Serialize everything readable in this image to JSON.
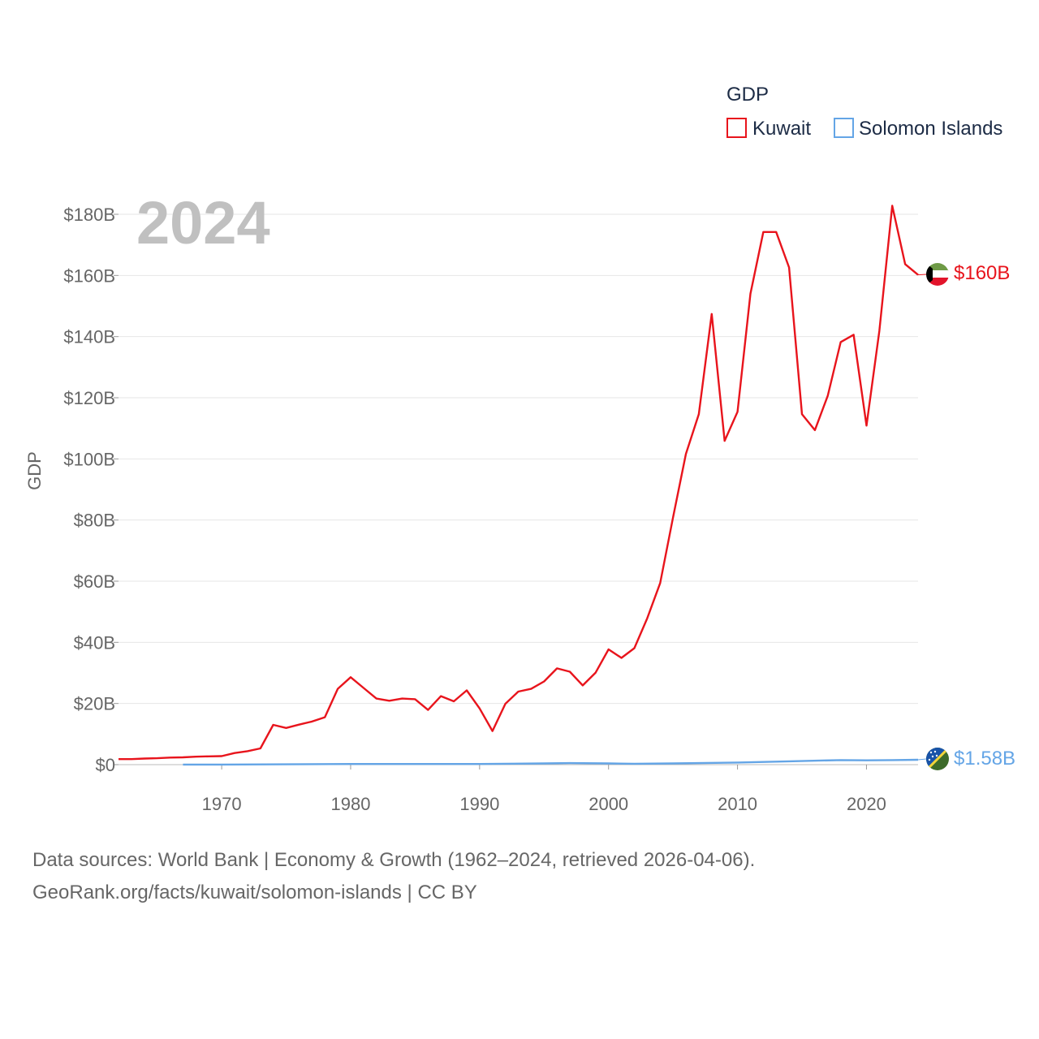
{
  "legend": {
    "title": "GDP",
    "items": [
      {
        "label": "Kuwait",
        "color": "#e8141c"
      },
      {
        "label": "Solomon Islands",
        "color": "#64a5e6"
      }
    ]
  },
  "year_label": "2024",
  "chart_data": {
    "type": "line",
    "title": "GDP",
    "xlabel": "",
    "ylabel": "GDP",
    "xlim": [
      1962,
      2024
    ],
    "ylim": [
      0,
      180
    ],
    "unit": "billions USD",
    "x_ticks": [
      1970,
      1980,
      1990,
      2000,
      2010,
      2020
    ],
    "y_ticks": [
      0,
      20,
      40,
      60,
      80,
      100,
      120,
      140,
      160,
      180
    ],
    "y_tick_labels": [
      "$0",
      "$20B",
      "$40B",
      "$60B",
      "$80B",
      "$100B",
      "$120B",
      "$140B",
      "$160B",
      "$180B"
    ],
    "grid": true,
    "series": [
      {
        "name": "Kuwait",
        "color": "#e8141c",
        "end_label": "$160B",
        "x": [
          1962,
          1963,
          1964,
          1965,
          1966,
          1967,
          1968,
          1969,
          1970,
          1971,
          1972,
          1973,
          1974,
          1975,
          1976,
          1977,
          1978,
          1979,
          1980,
          1981,
          1982,
          1983,
          1984,
          1985,
          1986,
          1987,
          1988,
          1989,
          1990,
          1991,
          1992,
          1993,
          1994,
          1995,
          1996,
          1997,
          1998,
          1999,
          2000,
          2001,
          2002,
          2003,
          2004,
          2005,
          2006,
          2007,
          2008,
          2009,
          2010,
          2011,
          2012,
          2013,
          2014,
          2015,
          2016,
          2017,
          2018,
          2019,
          2020,
          2021,
          2022,
          2023,
          2024
        ],
        "values": [
          1.8,
          1.8,
          2.0,
          2.1,
          2.3,
          2.4,
          2.6,
          2.7,
          2.8,
          3.8,
          4.4,
          5.3,
          13.0,
          12.0,
          13.1,
          14.1,
          15.5,
          24.8,
          28.6,
          25.1,
          21.6,
          20.9,
          21.6,
          21.4,
          17.9,
          22.4,
          20.7,
          24.3,
          18.4,
          11.0,
          19.9,
          23.9,
          24.8,
          27.2,
          31.5,
          30.4,
          25.9,
          30.1,
          37.7,
          34.9,
          38.1,
          47.9,
          59.4,
          80.8,
          101.6,
          114.6,
          147.4,
          105.9,
          115.4,
          154.0,
          174.2,
          174.2,
          162.6,
          114.6,
          109.4,
          120.7,
          138.2,
          140.6,
          110.9,
          141.8,
          182.8,
          163.7,
          160.2
        ]
      },
      {
        "name": "Solomon Islands",
        "color": "#64a5e6",
        "end_label": "$1.58B",
        "x": [
          1967,
          1970,
          1975,
          1980,
          1985,
          1990,
          1995,
          1997,
          2000,
          2002,
          2005,
          2010,
          2014,
          2018,
          2020,
          2022,
          2024
        ],
        "values": [
          0.03,
          0.03,
          0.1,
          0.2,
          0.2,
          0.2,
          0.4,
          0.5,
          0.4,
          0.3,
          0.4,
          0.7,
          1.1,
          1.5,
          1.4,
          1.5,
          1.58
        ]
      }
    ]
  },
  "source": {
    "line1": "Data sources: World Bank | Economy & Growth (1962–2024, retrieved 2026-04-06).",
    "line2": "GeoRank.org/facts/kuwait/solomon-islands | CC BY"
  }
}
